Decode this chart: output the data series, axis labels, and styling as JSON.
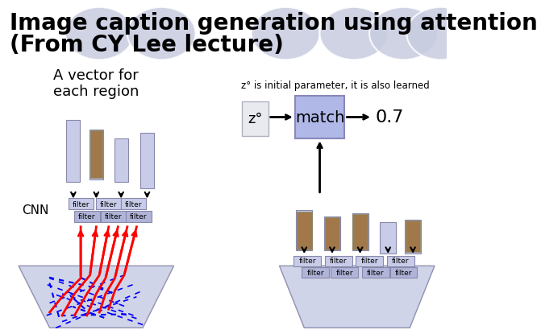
{
  "title_line1": "Image caption generation using attention",
  "title_line2": "(From CY Lee lecture)",
  "title_fontsize": 20,
  "title_bold": true,
  "bg_color": "#ffffff",
  "left_text": "A vector for\neach region",
  "cnn_label": "CNN",
  "z0_note": "z° is initial parameter, it is also learned",
  "match_label": "match",
  "output_val": "0.7",
  "z0_label": "z°",
  "filter_color": "#c8cce8",
  "match_color": "#b0b8e8",
  "z0_box_color": "#e8eaf0",
  "trapezoid_color": "#d0d4e8",
  "circle_color": "#c8cce0",
  "title_circle_color": "#c8cce0"
}
